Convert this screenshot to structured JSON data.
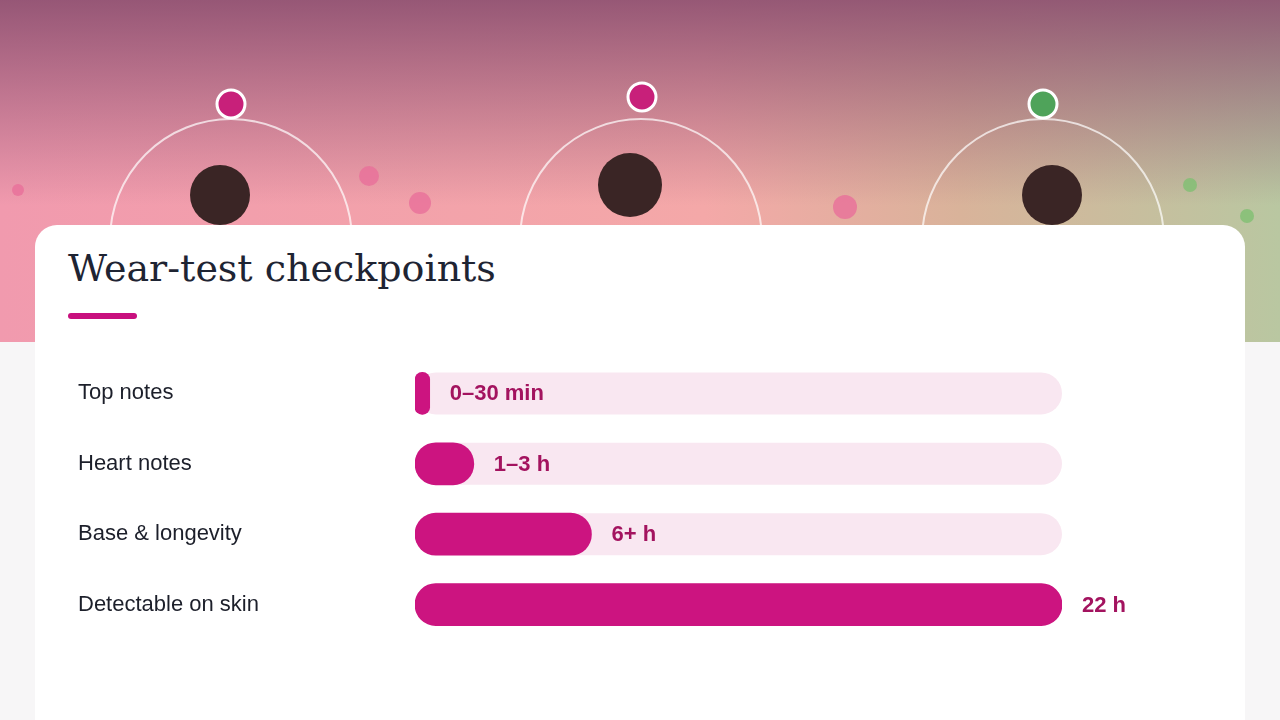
{
  "chart_data": {
    "type": "bar",
    "title": "Wear-test checkpoints",
    "orientation": "horizontal",
    "categories": [
      "Top notes",
      "Heart notes",
      "Base & longevity",
      "Detectable on skin"
    ],
    "values": [
      0.5,
      2,
      6,
      22
    ],
    "value_labels": [
      "0–30 min",
      "1–3 h",
      "6+ h",
      "22 h"
    ],
    "color": "#cc1480",
    "xlim": [
      0,
      22
    ],
    "grid": false,
    "data_labels": true,
    "tick_labels": "y"
  }
}
